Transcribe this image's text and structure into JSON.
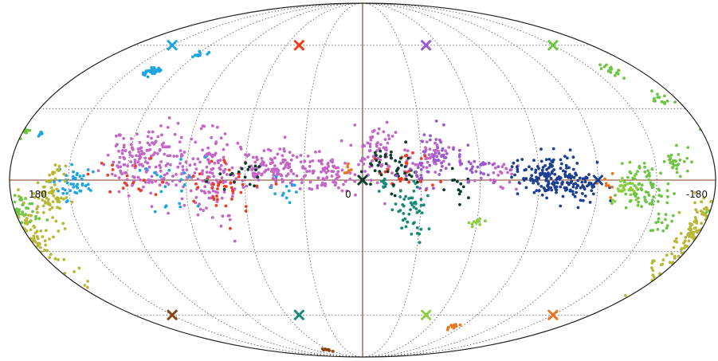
{
  "chart_data": {
    "type": "scatter",
    "projection": "mollweide",
    "x_range": [
      180,
      -180
    ],
    "y_range": [
      -90,
      90
    ],
    "grid": true,
    "legend": "none",
    "x_tick_labels": [
      {
        "lon": 180,
        "label": "180"
      },
      {
        "lon": 0,
        "label": "0"
      },
      {
        "lon": -180,
        "label": "-180"
      }
    ],
    "axis_line_color": "#7a3b1e",
    "grid_color": "#555555",
    "markers": [
      {
        "lon": 150,
        "lat": 60,
        "color": "#1ea6e0"
      },
      {
        "lon": 50,
        "lat": 60,
        "color": "#f03c1e"
      },
      {
        "lon": -50,
        "lat": 60,
        "color": "#9b59d0"
      },
      {
        "lon": -150,
        "lat": 60,
        "color": "#6cc644"
      },
      {
        "lon": 0,
        "lat": 0,
        "color": "#0b3d2e"
      },
      {
        "lon": -120,
        "lat": 0,
        "color": "#1c3f94"
      },
      {
        "lon": 150,
        "lat": -60,
        "color": "#8b4513"
      },
      {
        "lon": 50,
        "lat": -60,
        "color": "#178a7a"
      },
      {
        "lon": -50,
        "lat": -60,
        "color": "#8ccf3f"
      },
      {
        "lon": -150,
        "lat": -60,
        "color": "#e87722"
      }
    ],
    "series": [
      {
        "color": "#c466c8",
        "clusters": [
          {
            "lon": 112,
            "lat": 8,
            "dlon": 18,
            "dlat": 12,
            "n": 170
          },
          {
            "lon": 78,
            "lat": 3,
            "dlon": 14,
            "dlat": 14,
            "n": 140
          },
          {
            "lon": 45,
            "lat": 4,
            "dlon": 16,
            "dlat": 7,
            "n": 120
          },
          {
            "lon": 20,
            "lat": 3,
            "dlon": 12,
            "dlat": 6,
            "n": 80
          },
          {
            "lon": -8,
            "lat": 12,
            "dlon": 10,
            "dlat": 9,
            "n": 70
          },
          {
            "lon": -35,
            "lat": 8,
            "dlon": 12,
            "dlat": 8,
            "n": 45
          },
          {
            "lon": -70,
            "lat": 2,
            "dlon": 10,
            "dlat": 6,
            "n": 25
          }
        ]
      },
      {
        "color": "#f03c1e",
        "clusters": [
          {
            "lon": 72,
            "lat": -3,
            "dlon": 16,
            "dlat": 10,
            "n": 40
          },
          {
            "lon": 120,
            "lat": 2,
            "dlon": 14,
            "dlat": 8,
            "n": 18
          },
          {
            "lon": -22,
            "lat": 5,
            "dlon": 12,
            "dlat": 8,
            "n": 30
          }
        ]
      },
      {
        "color": "#1ea6e0",
        "clusters": [
          {
            "lon": 145,
            "lat": -2,
            "dlon": 10,
            "dlat": 6,
            "n": 45
          },
          {
            "lon": 95,
            "lat": -2,
            "dlon": 14,
            "dlat": 10,
            "n": 22
          },
          {
            "lon": 136,
            "lat": 47,
            "dlon": 4,
            "dlat": 2,
            "n": 30
          },
          {
            "lon": 118,
            "lat": 55,
            "dlon": 4,
            "dlat": 1.5,
            "n": 12
          },
          {
            "lon": 170,
            "lat": 19,
            "dlon": 1.5,
            "dlat": 1.5,
            "n": 6
          },
          {
            "lon": 40,
            "lat": -5,
            "dlon": 8,
            "dlat": 5,
            "n": 12
          }
        ]
      },
      {
        "color": "#b8b836",
        "clusters": [
          {
            "lon": 180,
            "lat": -25,
            "dlon": 10,
            "dlat": 16,
            "n": 120
          },
          {
            "lon": 160,
            "lat": -7,
            "dlon": 8,
            "dlat": 7,
            "n": 60
          },
          {
            "lon": -175,
            "lat": -20,
            "dlon": 5,
            "dlat": 9,
            "n": 40
          },
          {
            "lon": 155,
            "lat": 4,
            "dlon": 3,
            "dlat": 3,
            "n": 10
          }
        ]
      },
      {
        "color": "#178a7a",
        "clusters": [
          {
            "lon": -25,
            "lat": -12,
            "dlon": 8,
            "dlat": 8,
            "n": 50
          },
          {
            "lon": -10,
            "lat": -2,
            "dlon": 4,
            "dlat": 3,
            "n": 12
          }
        ]
      },
      {
        "color": "#0b3d2e",
        "clusters": [
          {
            "lon": -16,
            "lat": 5,
            "dlon": 10,
            "dlat": 8,
            "n": 45
          },
          {
            "lon": 60,
            "lat": 2,
            "dlon": 12,
            "dlat": 6,
            "n": 18
          },
          {
            "lon": -50,
            "lat": -3,
            "dlon": 6,
            "dlat": 5,
            "n": 14
          }
        ]
      },
      {
        "color": "#9b59d0",
        "clusters": [
          {
            "lon": -38,
            "lat": 10,
            "dlon": 8,
            "dlat": 9,
            "n": 45
          },
          {
            "lon": -60,
            "lat": 4,
            "dlon": 10,
            "dlat": 6,
            "n": 30
          },
          {
            "lon": -28,
            "lat": 3,
            "dlon": 6,
            "dlat": 5,
            "n": 15
          }
        ]
      },
      {
        "color": "#1c3f94",
        "clusters": [
          {
            "lon": -95,
            "lat": 2,
            "dlon": 14,
            "dlat": 7,
            "n": 140
          },
          {
            "lon": -112,
            "lat": -3,
            "dlon": 10,
            "dlat": 6,
            "n": 55
          }
        ]
      },
      {
        "color": "#6cc644",
        "clusters": [
          {
            "lon": -145,
            "lat": -4,
            "dlon": 10,
            "dlat": 9,
            "n": 80
          },
          {
            "lon": -160,
            "lat": 8,
            "dlon": 6,
            "dlat": 5,
            "n": 25
          },
          {
            "lon": -185,
            "lat": -12,
            "dlon": 5,
            "dlat": 5,
            "n": 30
          },
          {
            "lon": -162,
            "lat": 48,
            "dlon": 5,
            "dlat": 3,
            "n": 16
          },
          {
            "lon": -172,
            "lat": 34,
            "dlon": 5,
            "dlat": 3,
            "n": 14
          },
          {
            "lon": -180,
            "lat": 20,
            "dlon": 2,
            "dlat": 2,
            "n": 10
          },
          {
            "lon": -158,
            "lat": -18,
            "dlon": 6,
            "dlat": 5,
            "n": 14
          }
        ]
      },
      {
        "color": "#8ccf3f",
        "clusters": [
          {
            "lon": -135,
            "lat": -2,
            "dlon": 8,
            "dlat": 6,
            "n": 25
          },
          {
            "lon": -60,
            "lat": -18,
            "dlon": 4,
            "dlat": 2,
            "n": 10
          }
        ]
      },
      {
        "color": "#e87722",
        "clusters": [
          {
            "lon": -82,
            "lat": -66,
            "dlon": 4,
            "dlat": 1.5,
            "n": 14
          },
          {
            "lon": -123,
            "lat": -2,
            "dlon": 4,
            "dlat": 4,
            "n": 8
          },
          {
            "lon": 8,
            "lat": 4,
            "dlon": 3,
            "dlat": 3,
            "n": 8
          }
        ]
      },
      {
        "color": "#8b4513",
        "clusters": [
          {
            "lon": 65,
            "lat": -82,
            "dlon": 5,
            "dlat": 1,
            "n": 10
          }
        ]
      }
    ]
  }
}
